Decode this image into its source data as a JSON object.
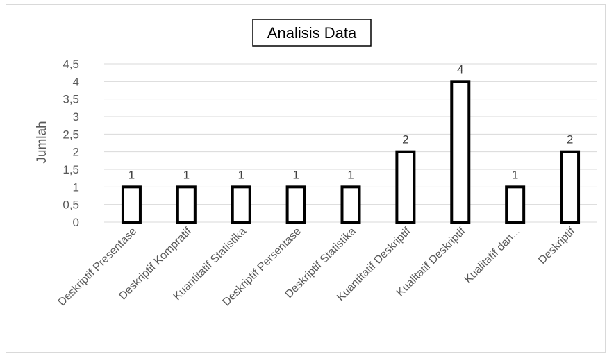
{
  "chart_data": {
    "type": "bar",
    "title": "Analisis Data",
    "xlabel": "",
    "ylabel": "Jumlah",
    "ylim": [
      0,
      4.5
    ],
    "yticks": [
      "0",
      "0,5",
      "1",
      "1,5",
      "2",
      "2,5",
      "3",
      "3,5",
      "4",
      "4,5"
    ],
    "grid": true,
    "legend": "none",
    "categories": [
      "Deskriptif Presentase",
      "Deskriptif Kompratif",
      "Kuantitatif Statistika",
      "Deskriptif Persentase",
      "Deskriptif Statistika",
      "Kuantitatif Deskriptif",
      "Kualitatif Deskriptif",
      "Kualitatif dan...",
      "Deskriptif"
    ],
    "values": [
      1,
      1,
      1,
      1,
      1,
      2,
      4,
      1,
      2
    ],
    "data_labels": [
      "1",
      "1",
      "1",
      "1",
      "1",
      "2",
      "4",
      "1",
      "2"
    ],
    "colors": {
      "bar_fill": "#ffffff",
      "bar_stroke": "#000000",
      "grid": "#d9d9d9",
      "text": "#595959"
    }
  }
}
